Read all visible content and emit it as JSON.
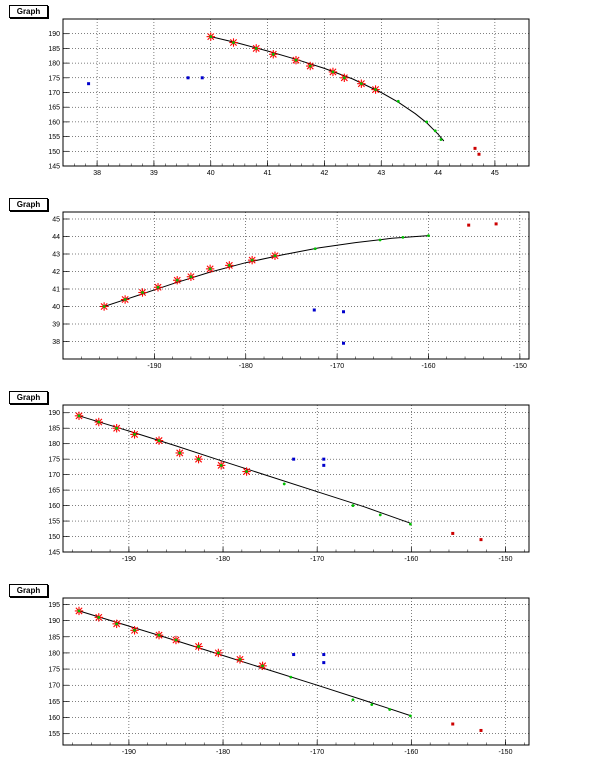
{
  "chart_data": [
    {
      "type": "scatter",
      "title": "Graph",
      "xlim": [
        37.4,
        45.6
      ],
      "ylim": [
        145,
        195
      ],
      "xticks": [
        38,
        39,
        40,
        41,
        42,
        43,
        44,
        45
      ],
      "yticks": [
        145,
        150,
        155,
        160,
        165,
        170,
        175,
        180,
        185,
        190
      ],
      "grid": true,
      "series": [
        {
          "color": "#ff0000",
          "marker": "star",
          "x": [
            40.0,
            40.4,
            40.8,
            41.1,
            41.5,
            41.75,
            42.15,
            42.35,
            42.65,
            42.9
          ],
          "y": [
            189,
            187,
            185,
            183,
            181,
            179,
            177,
            175,
            173,
            171
          ]
        },
        {
          "color": "#00c000",
          "marker": "dot",
          "x": [
            40.0,
            40.4,
            40.8,
            41.1,
            41.5,
            41.75,
            42.15,
            42.35,
            42.65,
            42.9,
            43.3,
            43.8,
            43.95,
            44.05
          ],
          "y": [
            189,
            187,
            185,
            183,
            181,
            179,
            177,
            175,
            173,
            171,
            167,
            160,
            157,
            154
          ]
        },
        {
          "color": "#0000cc",
          "marker": "square",
          "x": [
            37.85,
            39.6,
            39.85
          ],
          "y": [
            173,
            175,
            175
          ]
        },
        {
          "color": "#cc0000",
          "marker": "square",
          "x": [
            44.65,
            44.72
          ],
          "y": [
            151,
            149
          ]
        }
      ],
      "fit": {
        "color": "#000000",
        "x": [
          40.0,
          40.5,
          41.0,
          41.5,
          42.0,
          42.5,
          43.0,
          43.3,
          43.6,
          43.8,
          44.0,
          44.1
        ],
        "y": [
          189,
          186.7,
          184.1,
          181.3,
          178.2,
          174.6,
          170.0,
          166.7,
          162.8,
          159.7,
          155.8,
          153.5
        ]
      }
    },
    {
      "type": "scatter",
      "title": "Graph",
      "xlim": [
        -200,
        -149
      ],
      "ylim": [
        37,
        45.4
      ],
      "xticks": [
        -190,
        -180,
        -170,
        -160,
        -150
      ],
      "yticks": [
        38,
        39,
        40,
        41,
        42,
        43,
        44,
        45
      ],
      "grid": true,
      "series": [
        {
          "color": "#ff0000",
          "marker": "star",
          "x": [
            -195.5,
            -193.2,
            -191.3,
            -189.6,
            -187.5,
            -186.0,
            -183.9,
            -181.8,
            -179.3,
            -176.8
          ],
          "y": [
            40.0,
            40.4,
            40.8,
            41.1,
            41.5,
            41.7,
            42.15,
            42.35,
            42.65,
            42.9
          ]
        },
        {
          "color": "#00c000",
          "marker": "dot",
          "x": [
            -195.5,
            -193.2,
            -191.3,
            -189.6,
            -187.5,
            -186.0,
            -183.9,
            -181.8,
            -179.3,
            -176.8,
            -172.4,
            -165.3,
            -162.8,
            -160.0
          ],
          "y": [
            40.0,
            40.4,
            40.8,
            41.1,
            41.5,
            41.7,
            42.15,
            42.35,
            42.65,
            42.9,
            43.3,
            43.8,
            43.95,
            44.05
          ]
        },
        {
          "color": "#0000cc",
          "marker": "square",
          "x": [
            -172.5,
            -169.3,
            -169.3
          ],
          "y": [
            39.8,
            39.7,
            37.9
          ]
        },
        {
          "color": "#cc0000",
          "marker": "square",
          "x": [
            -155.6,
            -152.6
          ],
          "y": [
            44.65,
            44.72
          ]
        }
      ],
      "fit": {
        "color": "#000000",
        "x": [
          -195.5,
          -192,
          -188,
          -184,
          -180,
          -176,
          -172,
          -168,
          -164,
          -160
        ],
        "y": [
          40.0,
          40.6,
          41.3,
          41.95,
          42.5,
          42.95,
          43.35,
          43.65,
          43.9,
          44.05
        ]
      }
    },
    {
      "type": "scatter",
      "title": "Graph",
      "xlim": [
        -197,
        -147.5
      ],
      "ylim": [
        145,
        192.5
      ],
      "xticks": [
        -190,
        -180,
        -170,
        -160,
        -150
      ],
      "yticks": [
        145,
        150,
        155,
        160,
        165,
        170,
        175,
        180,
        185,
        190
      ],
      "grid": true,
      "series": [
        {
          "color": "#ff0000",
          "marker": "star",
          "x": [
            -195.3,
            -193.2,
            -191.3,
            -189.4,
            -186.8,
            -184.6,
            -182.6,
            -180.2,
            -177.5
          ],
          "y": [
            189,
            187,
            185,
            183,
            181,
            177,
            175,
            173,
            171
          ]
        },
        {
          "color": "#00c000",
          "marker": "dot",
          "x": [
            -195.3,
            -193.2,
            -191.3,
            -189.4,
            -186.8,
            -184.6,
            -182.6,
            -180.2,
            -177.5,
            -173.5,
            -166.2,
            -163.3,
            -160.1
          ],
          "y": [
            189,
            187,
            185,
            183,
            181,
            177,
            175,
            173,
            171,
            167,
            160,
            157,
            154
          ]
        },
        {
          "color": "#0000cc",
          "marker": "square",
          "x": [
            -172.5,
            -169.3,
            -169.3
          ],
          "y": [
            175,
            175,
            173
          ]
        },
        {
          "color": "#cc0000",
          "marker": "square",
          "x": [
            -155.6,
            -152.6
          ],
          "y": [
            151,
            149
          ]
        }
      ],
      "fit": {
        "color": "#000000",
        "x": [
          -195.3,
          -190,
          -185,
          -180,
          -175,
          -170,
          -165,
          -160.1
        ],
        "y": [
          189,
          184.1,
          179.3,
          174.3,
          169.4,
          164.5,
          159.6,
          154.3
        ]
      }
    },
    {
      "type": "scatter",
      "title": "Graph",
      "xlim": [
        -197,
        -147.5
      ],
      "ylim": [
        151.5,
        197
      ],
      "xticks": [
        -190,
        -180,
        -170,
        -160,
        -150
      ],
      "yticks": [
        155,
        160,
        165,
        170,
        175,
        180,
        185,
        190,
        195
      ],
      "grid": true,
      "series": [
        {
          "color": "#ff0000",
          "marker": "star",
          "x": [
            -195.3,
            -193.2,
            -191.3,
            -189.4,
            -186.8,
            -185.0,
            -182.6,
            -180.5,
            -178.2,
            -175.8
          ],
          "y": [
            193,
            191,
            189,
            187,
            185.5,
            184,
            182,
            180,
            178,
            176
          ]
        },
        {
          "color": "#00c000",
          "marker": "dot",
          "x": [
            -195.3,
            -193.2,
            -191.3,
            -189.4,
            -186.8,
            -185.0,
            -182.6,
            -180.5,
            -178.2,
            -175.8,
            -172.8,
            -166.2,
            -164.2,
            -162.3,
            -160.1
          ],
          "y": [
            193,
            191,
            189,
            187,
            185.5,
            184,
            182,
            180,
            178,
            176,
            172.5,
            165.5,
            164,
            162.5,
            160.5
          ]
        },
        {
          "color": "#0000cc",
          "marker": "square",
          "x": [
            -172.5,
            -169.3,
            -169.3
          ],
          "y": [
            179.5,
            179.5,
            177
          ]
        },
        {
          "color": "#cc0000",
          "marker": "square",
          "x": [
            -155.6,
            -152.6
          ],
          "y": [
            158,
            156
          ]
        }
      ],
      "fit": {
        "color": "#000000",
        "x": [
          -195.3,
          -190,
          -185,
          -180,
          -175,
          -170,
          -165,
          -160.1
        ],
        "y": [
          193,
          188.3,
          183.8,
          179.2,
          174.6,
          170.0,
          165.3,
          160.6
        ]
      }
    }
  ]
}
